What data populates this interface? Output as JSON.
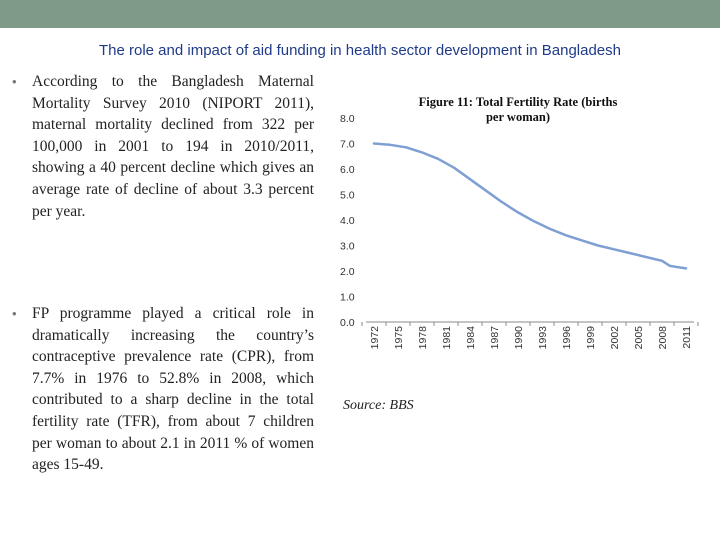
{
  "slide": {
    "title": "The role and impact of aid funding in health sector development in Bangladesh",
    "bullets": [
      "According to the Bangladesh Maternal Mortality Survey 2010 (NIPORT 2011), maternal mortality declined from 322 per 100,000 in 2001 to 194 in 2010/2011, showing a 40 percent decline which gives an average rate of decline of about 3.3 percent per year.",
      "FP programme played a critical role in dramatically increasing the country’s contraceptive prevalence rate (CPR), from 7.7% in 1976 to 52.8% in 2008, which contributed to a sharp decline in the total fertility rate (TFR), from about 7 children per woman to about 2.1 in 2011 % of women ages 15-49."
    ],
    "source": "Source: BBS"
  },
  "colors": {
    "topbar": "#7f9a86",
    "title": "#1f3a8a",
    "line": "#7f9fd4",
    "axis": "#888888"
  },
  "chart_data": {
    "type": "line",
    "title": "Figure 11: Total Fertility Rate (births per woman)",
    "xlabel": "",
    "ylabel": "",
    "ylim": [
      0,
      8
    ],
    "yticks": [
      "0.0",
      "1.0",
      "2.0",
      "3.0",
      "4.0",
      "5.0",
      "6.0",
      "7.0",
      "8.0"
    ],
    "xticks": [
      "1972",
      "1975",
      "1978",
      "1981",
      "1984",
      "1987",
      "1990",
      "1993",
      "1996",
      "1999",
      "2002",
      "2005",
      "2008",
      "2011"
    ],
    "grid": false,
    "legend": "none",
    "series": [
      {
        "x": [
          1972,
          1974,
          1976,
          1978,
          1980,
          1982,
          1984,
          1986,
          1988,
          1990,
          1992,
          1994,
          1996,
          1998,
          2000,
          2002,
          2004,
          2006,
          2008,
          2009,
          2010,
          2011
        ],
        "values": [
          7.0,
          6.95,
          6.85,
          6.65,
          6.4,
          6.05,
          5.6,
          5.15,
          4.7,
          4.3,
          3.95,
          3.65,
          3.4,
          3.2,
          3.0,
          2.85,
          2.7,
          2.55,
          2.4,
          2.2,
          2.15,
          2.1
        ]
      }
    ]
  }
}
